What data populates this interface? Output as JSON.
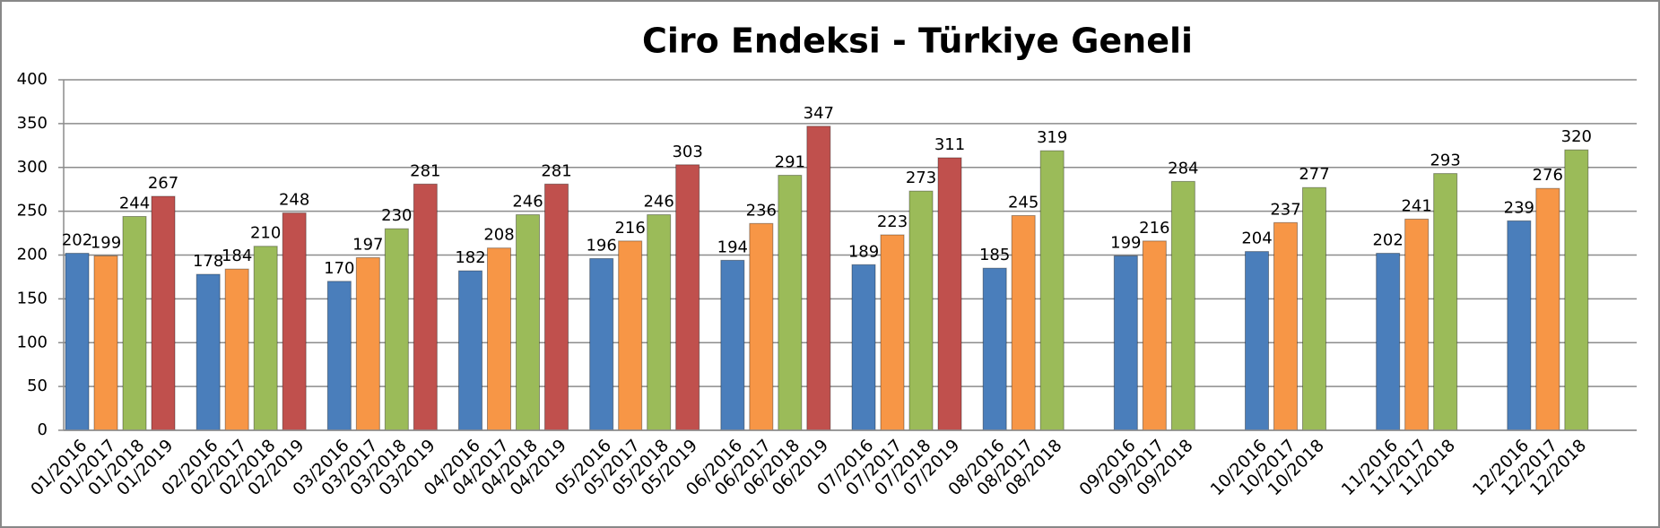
{
  "chart_data": {
    "type": "bar",
    "title": "Ciro Endeksi - Türkiye Geneli",
    "colors": [
      "#4a7ebb",
      "#f79646",
      "#9bbb59",
      "#c0504d"
    ],
    "groups": [
      {
        "categories": [
          "01/2016",
          "01/2017",
          "01/2018",
          "01/2019"
        ],
        "values": [
          202,
          199,
          244,
          267
        ]
      },
      {
        "categories": [
          "02/2016",
          "02/2017",
          "02/2018",
          "02/2019"
        ],
        "values": [
          178,
          184,
          210,
          248
        ]
      },
      {
        "categories": [
          "03/2016",
          "03/2017",
          "03/2018",
          "03/2019"
        ],
        "values": [
          170,
          197,
          230,
          281
        ]
      },
      {
        "categories": [
          "04/2016",
          "04/2017",
          "04/2018",
          "04/2019"
        ],
        "values": [
          182,
          208,
          246,
          281
        ]
      },
      {
        "categories": [
          "05/2016",
          "05/2017",
          "05/2018",
          "05/2019"
        ],
        "values": [
          196,
          216,
          246,
          303
        ]
      },
      {
        "categories": [
          "06/2016",
          "06/2017",
          "06/2018",
          "06/2019"
        ],
        "values": [
          194,
          236,
          291,
          347
        ]
      },
      {
        "categories": [
          "07/2016",
          "07/2017",
          "07/2018",
          "07/2019"
        ],
        "values": [
          189,
          223,
          273,
          311
        ]
      },
      {
        "categories": [
          "08/2016",
          "08/2017",
          "08/2018"
        ],
        "values": [
          185,
          245,
          319
        ]
      },
      {
        "categories": [
          "09/2016",
          "09/2017",
          "09/2018"
        ],
        "values": [
          199,
          216,
          284
        ]
      },
      {
        "categories": [
          "10/2016",
          "10/2017",
          "10/2018"
        ],
        "values": [
          204,
          237,
          277
        ]
      },
      {
        "categories": [
          "11/2016",
          "11/2017",
          "11/2018"
        ],
        "values": [
          202,
          241,
          293
        ]
      },
      {
        "categories": [
          "12/2016",
          "12/2017",
          "12/2018"
        ],
        "values": [
          239,
          276,
          320
        ]
      }
    ],
    "ylim": [
      0,
      400
    ],
    "yticks": [
      0,
      50,
      100,
      150,
      200,
      250,
      300,
      350,
      400
    ],
    "grid": true
  }
}
